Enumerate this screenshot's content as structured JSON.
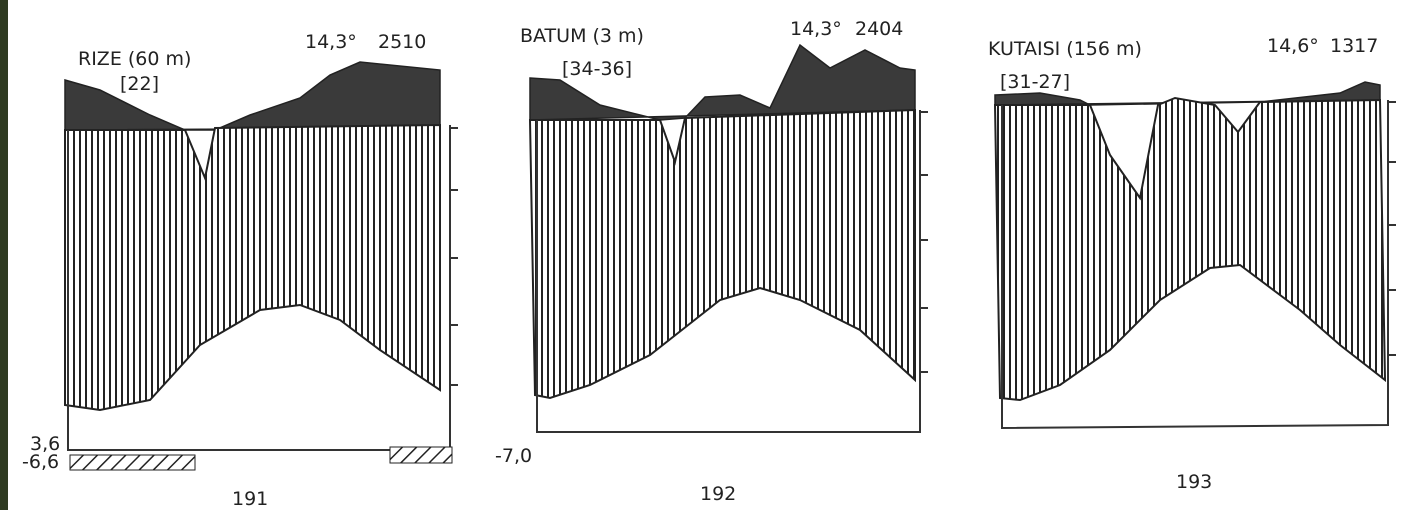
{
  "diagrams": [
    {
      "station": "RIZE (60 m)",
      "years": "[22]",
      "temperature": "14,3°",
      "precipitation": "2510",
      "min_labels": [
        "3,6",
        "-6,6"
      ],
      "number": "191"
    },
    {
      "station": "BATUM (3 m)",
      "years": "[34-36]",
      "temperature": "14,3°",
      "precipitation": "2404",
      "min_labels": [
        "-7,0"
      ],
      "number": "192"
    },
    {
      "station": "KUTAISI (156 m)",
      "years": "[31-27]",
      "temperature": "14,6°",
      "precipitation": "1317",
      "min_labels": [],
      "number": "193"
    }
  ]
}
